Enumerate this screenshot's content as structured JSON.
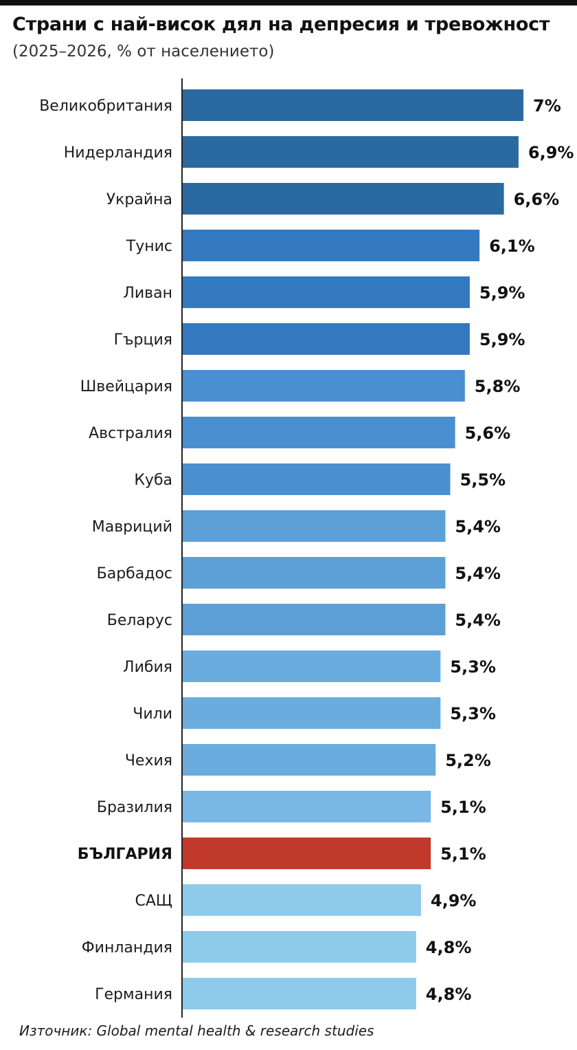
{
  "header": {
    "title": "Страни с най-висок дял на депресия и тревожност",
    "subtitle": "(2025–2026, % от населението)"
  },
  "footer": {
    "source": "Източник: Global mental health & research studies"
  },
  "chart_data": {
    "type": "bar",
    "orientation": "horizontal",
    "title": "Страни с най-висок дял на депресия и тревожност",
    "subtitle": "(2025–2026, % от населението)",
    "xlabel": "",
    "ylabel": "",
    "xlim": [
      0,
      7
    ],
    "grid": false,
    "legend": "none",
    "categories": [
      "Великобритания",
      "Нидерландия",
      "Украйна",
      "Тунис",
      "Ливан",
      "Гърция",
      "Швейцария",
      "Австралия",
      "Куба",
      "Мавриций",
      "Барбадос",
      "Беларус",
      "Либия",
      "Чили",
      "Чехия",
      "Бразилия",
      "БЪЛГАРИЯ",
      "САЩ",
      "Финландия",
      "Германия"
    ],
    "values": [
      7,
      6.9,
      6.6,
      6.1,
      5.9,
      5.9,
      5.8,
      5.6,
      5.5,
      5.4,
      5.4,
      5.4,
      5.3,
      5.3,
      5.2,
      5.1,
      5.1,
      4.9,
      4.8,
      4.8
    ],
    "value_labels": [
      "7%",
      "6,9%",
      "6,6%",
      "6,1%",
      "5,9%",
      "5,9%",
      "5,8%",
      "5,6%",
      "5,5%",
      "5,4%",
      "5,4%",
      "5,4%",
      "5,3%",
      "5,3%",
      "5,2%",
      "5,1%",
      "5,1%",
      "4,9%",
      "4,8%",
      "4,8%"
    ],
    "colors": [
      "#2a6aa0",
      "#2a6aa0",
      "#2a6aa0",
      "#3379c0",
      "#3379c0",
      "#3379c0",
      "#4a8fcf",
      "#4a8fcf",
      "#4a8fcf",
      "#5d9fd7",
      "#5d9fd7",
      "#5d9fd7",
      "#6aacde",
      "#6aacde",
      "#6aacde",
      "#7ab8e6",
      "#c0392b",
      "#8ecbea",
      "#8ecbea",
      "#8ecbea"
    ],
    "highlight": "БЪЛГАРИЯ"
  }
}
